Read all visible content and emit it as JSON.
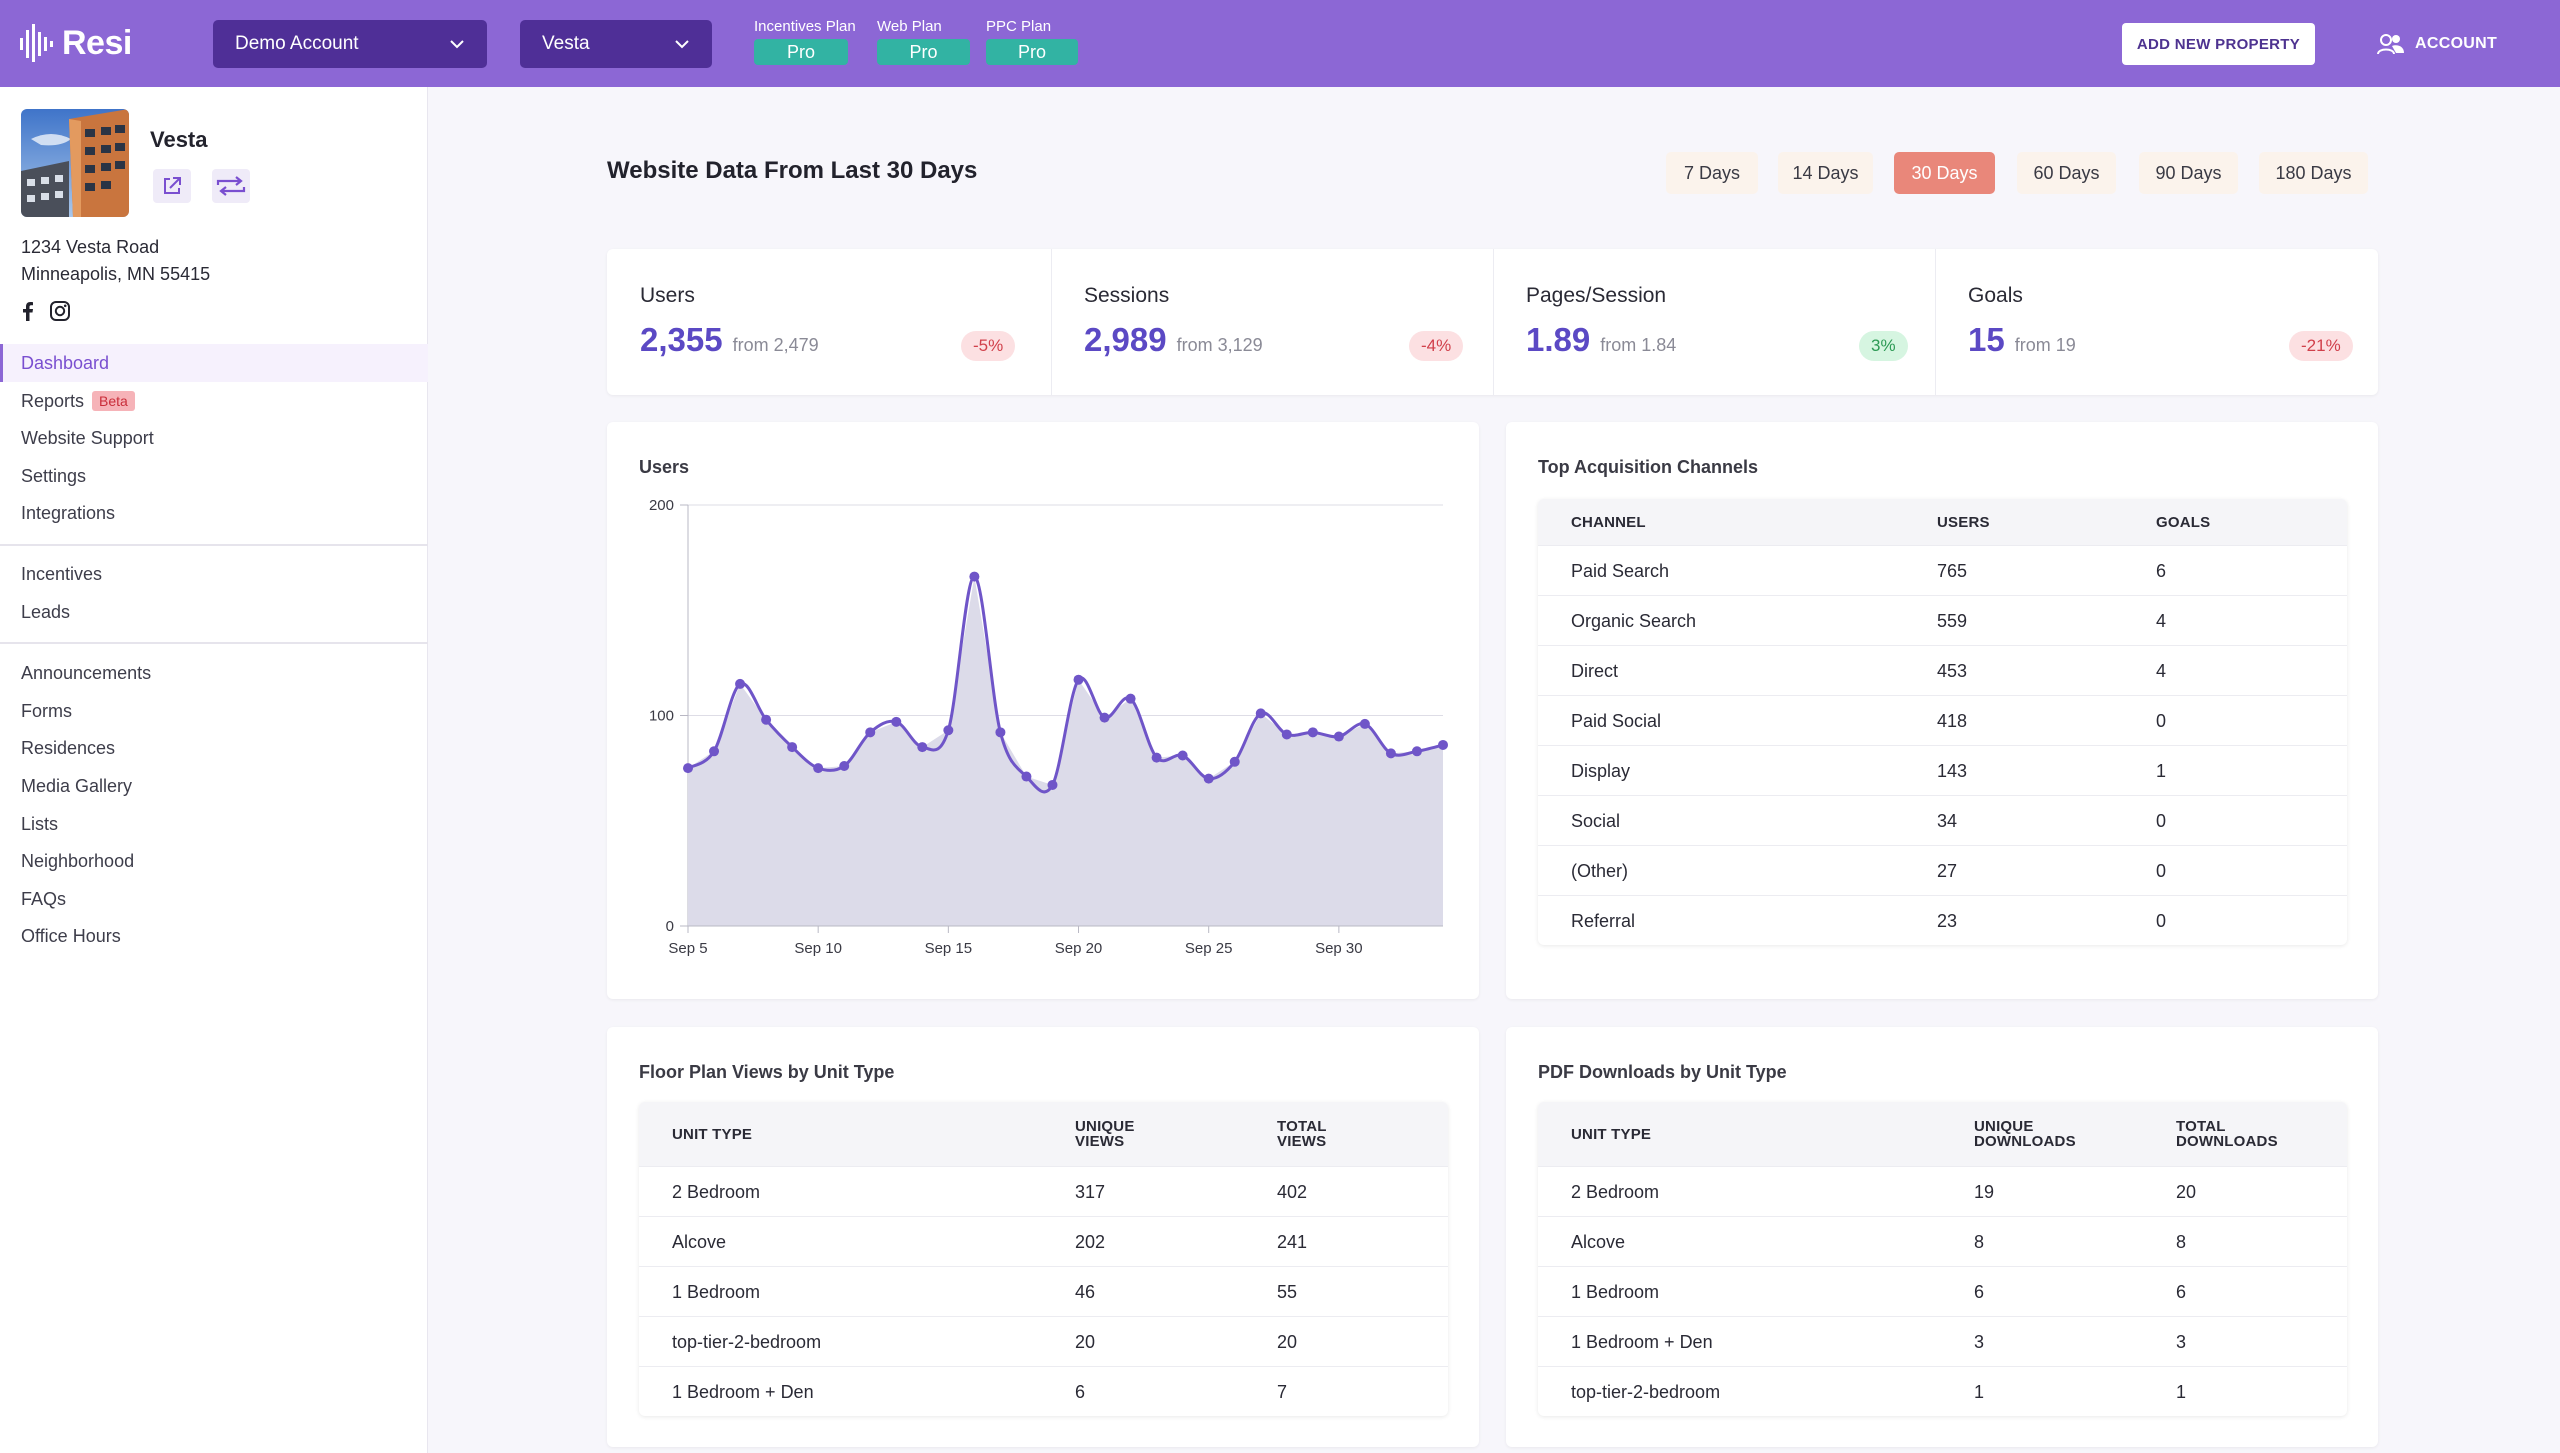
{
  "header": {
    "logo_text": "Resi",
    "account_select": "Demo Account",
    "property_select": "Vesta",
    "plans": [
      {
        "label": "Incentives Plan",
        "value": "Pro"
      },
      {
        "label": "Web Plan",
        "value": "Pro"
      },
      {
        "label": "PPC Plan",
        "value": "Pro"
      }
    ],
    "add_property_label": "ADD NEW PROPERTY",
    "account_label": "ACCOUNT"
  },
  "sidebar": {
    "property_name": "Vesta",
    "address_line1": "1234 Vesta Road",
    "address_line2": "Minneapolis, MN 55415",
    "nav_group1": [
      "Dashboard",
      "Reports",
      "Website Support",
      "Settings",
      "Integrations"
    ],
    "reports_badge": "Beta",
    "nav_group2": [
      "Incentives",
      "Leads"
    ],
    "nav_group3": [
      "Announcements",
      "Forms",
      "Residences",
      "Media Gallery",
      "Lists",
      "Neighborhood",
      "FAQs",
      "Office Hours"
    ]
  },
  "main": {
    "title": "Website Data From Last 30 Days",
    "ranges": [
      "7 Days",
      "14 Days",
      "30 Days",
      "60 Days",
      "90 Days",
      "180 Days"
    ],
    "active_range": "30 Days",
    "stats": [
      {
        "label": "Users",
        "value": "2,355",
        "from": "from 2,479",
        "change": "-5%",
        "trend": "negative"
      },
      {
        "label": "Sessions",
        "value": "2,989",
        "from": "from 3,129",
        "change": "-4%",
        "trend": "negative"
      },
      {
        "label": "Pages/Session",
        "value": "1.89",
        "from": "from 1.84",
        "change": "3%",
        "trend": "positive"
      },
      {
        "label": "Goals",
        "value": "15",
        "from": "from 19",
        "change": "-21%",
        "trend": "negative"
      }
    ],
    "acquisition": {
      "title": "Top Acquisition Channels",
      "headers": [
        "CHANNEL",
        "USERS",
        "GOALS"
      ],
      "rows": [
        [
          "Paid Search",
          "765",
          "6"
        ],
        [
          "Organic Search",
          "559",
          "4"
        ],
        [
          "Direct",
          "453",
          "4"
        ],
        [
          "Paid Social",
          "418",
          "0"
        ],
        [
          "Display",
          "143",
          "1"
        ],
        [
          "Social",
          "34",
          "0"
        ],
        [
          "(Other)",
          "27",
          "0"
        ],
        [
          "Referral",
          "23",
          "0"
        ]
      ]
    },
    "floorplan": {
      "title": "Floor Plan Views by Unit Type",
      "headers": [
        "UNIT TYPE",
        "UNIQUE VIEWS",
        "TOTAL VIEWS"
      ],
      "rows": [
        [
          "2 Bedroom",
          "317",
          "402"
        ],
        [
          "Alcove",
          "202",
          "241"
        ],
        [
          "1 Bedroom",
          "46",
          "55"
        ],
        [
          "top-tier-2-bedroom",
          "20",
          "20"
        ],
        [
          "1 Bedroom + Den",
          "6",
          "7"
        ]
      ]
    },
    "pdf": {
      "title": "PDF Downloads by Unit Type",
      "headers": [
        "UNIT TYPE",
        "UNIQUE DOWNLOADS",
        "TOTAL DOWNLOADS"
      ],
      "rows": [
        [
          "2 Bedroom",
          "19",
          "20"
        ],
        [
          "Alcove",
          "8",
          "8"
        ],
        [
          "1 Bedroom",
          "6",
          "6"
        ],
        [
          "1 Bedroom + Den",
          "3",
          "3"
        ],
        [
          "top-tier-2-bedroom",
          "1",
          "1"
        ]
      ]
    },
    "colors": {
      "brand": "#8c67d5",
      "accent_line": "#6f55c8",
      "area_fill": "#dcdbe9",
      "active_range": "#e9877a",
      "plan_badge": "#32b3a3"
    }
  },
  "chart_data": {
    "type": "area",
    "title": "Users",
    "xlabel": "",
    "ylabel": "",
    "x_ticks": [
      "Sep 5",
      "Sep 10",
      "Sep 15",
      "Sep 20",
      "Sep 25",
      "Sep 30"
    ],
    "y_ticks": [
      "0",
      "100",
      "200"
    ],
    "ylim": [
      0,
      200
    ],
    "x": [
      "Sep 5",
      "Sep 6",
      "Sep 7",
      "Sep 8",
      "Sep 9",
      "Sep 10",
      "Sep 11",
      "Sep 12",
      "Sep 13",
      "Sep 14",
      "Sep 15",
      "Sep 16",
      "Sep 17",
      "Sep 18",
      "Sep 19",
      "Sep 20",
      "Sep 21",
      "Sep 22",
      "Sep 23",
      "Sep 24",
      "Sep 25",
      "Sep 26",
      "Sep 27",
      "Sep 28",
      "Sep 29",
      "Sep 30",
      "Oct 1",
      "Oct 2",
      "Oct 3",
      "Oct 4"
    ],
    "series": [
      {
        "values": [
          75,
          83,
          115,
          98,
          85,
          75,
          76,
          92,
          97,
          85,
          93,
          166,
          92,
          71,
          67,
          117,
          99,
          108,
          80,
          81,
          70,
          78,
          101,
          91,
          92,
          90,
          96,
          82,
          83,
          86
        ]
      }
    ],
    "grid": true
  }
}
